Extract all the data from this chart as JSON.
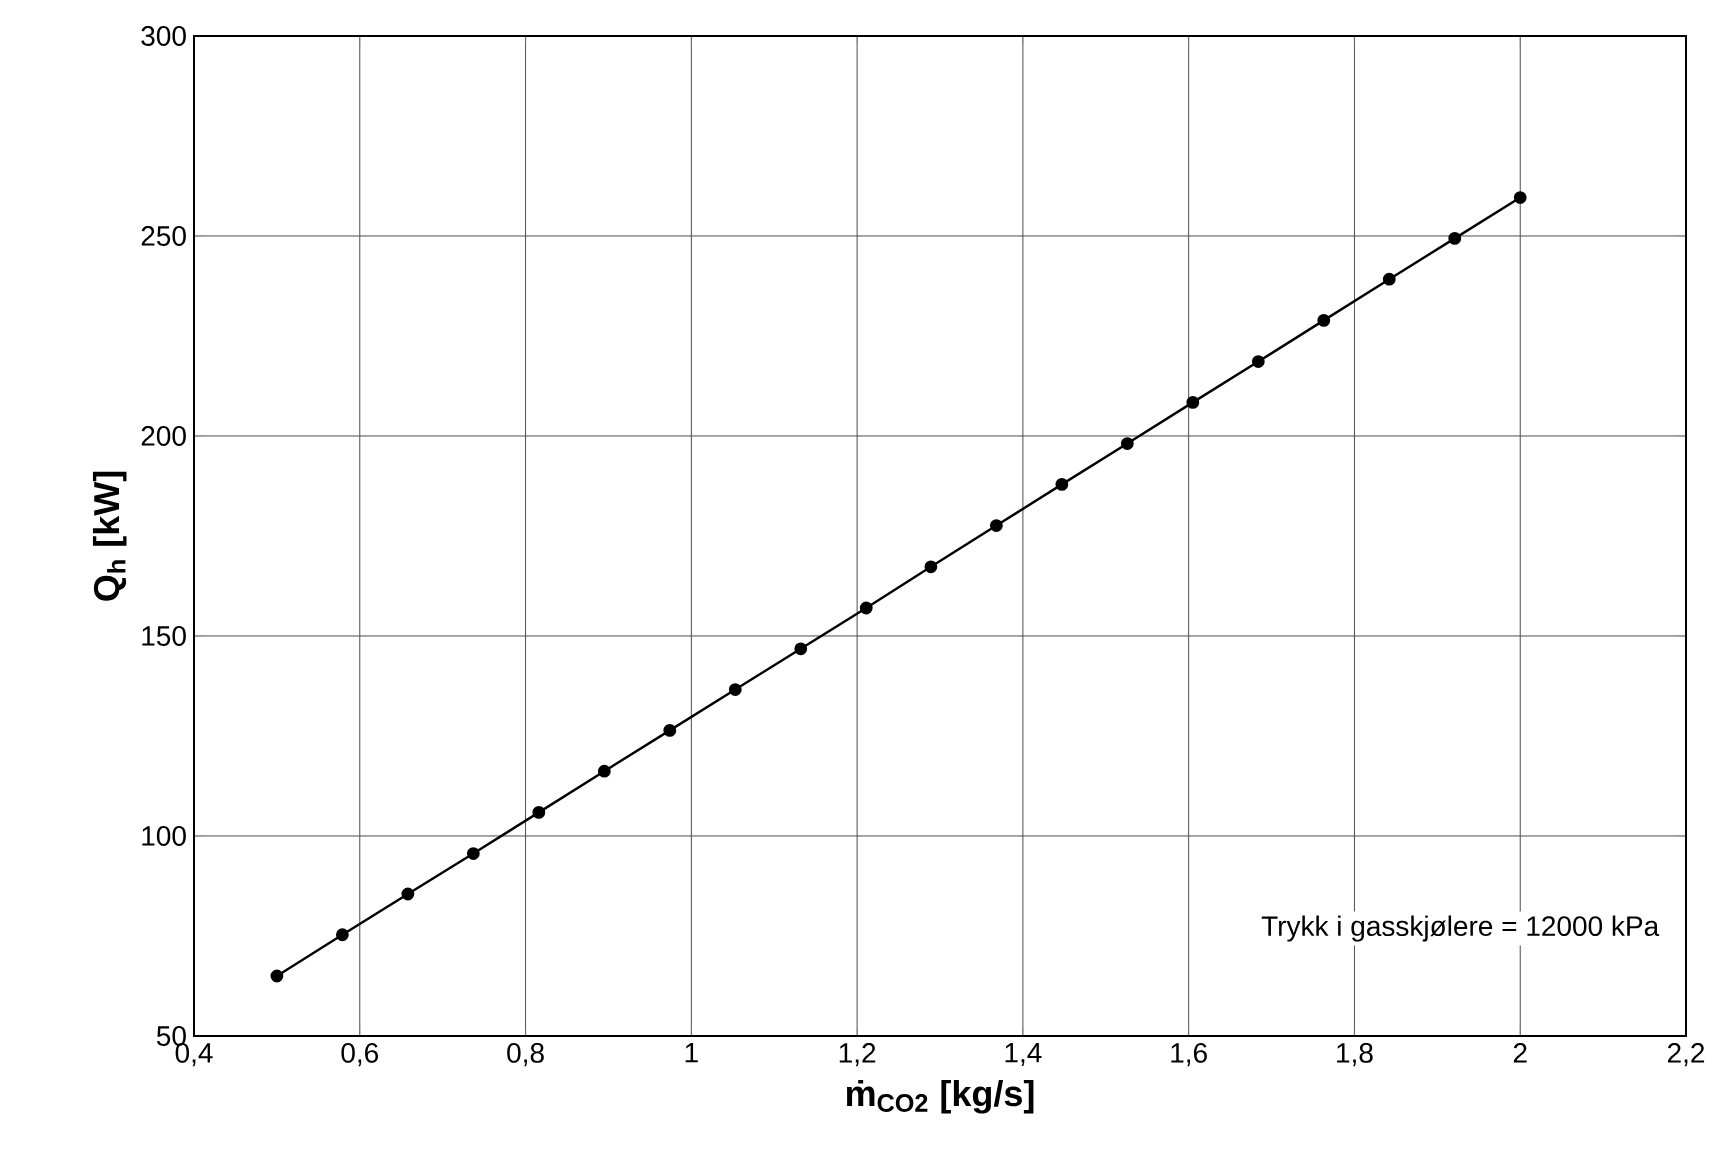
{
  "chart_data": {
    "type": "line",
    "xlabel": "ṁ$_{CO2}$ [kg/s]",
    "ylabel": "Q$_{h}$ [kW]",
    "x": [
      0.5,
      0.579,
      0.658,
      0.737,
      0.816,
      0.895,
      0.974,
      1.053,
      1.132,
      1.211,
      1.289,
      1.368,
      1.447,
      1.526,
      1.605,
      1.684,
      1.763,
      1.842,
      1.921,
      2.0
    ],
    "series": [
      {
        "color": "#000000",
        "values": [
          65,
          75.3,
          85.5,
          95.6,
          105.9,
          116.2,
          126.4,
          136.6,
          146.8,
          157.0,
          167.3,
          177.6,
          187.9,
          198.1,
          208.4,
          218.6,
          228.9,
          239.2,
          249.4,
          259.6
        ]
      }
    ],
    "xlim": [
      0.4,
      2.2
    ],
    "ylim": [
      50,
      300
    ],
    "xticks": [
      {
        "value": 0.4,
        "label": "0,4"
      },
      {
        "value": 0.6,
        "label": "0,6"
      },
      {
        "value": 0.8,
        "label": "0,8"
      },
      {
        "value": 1,
        "label": "1"
      },
      {
        "value": 1.2,
        "label": "1,2"
      },
      {
        "value": 1.4,
        "label": "1,4"
      },
      {
        "value": 1.6,
        "label": "1,6"
      },
      {
        "value": 1.8,
        "label": "1,8"
      },
      {
        "value": 2,
        "label": "2"
      },
      {
        "value": 2.2,
        "label": "2,2"
      }
    ],
    "yticks": [
      50,
      100,
      150,
      200,
      250,
      300
    ],
    "annotations": [
      "Trykk i gasskjølere = 12000 kPa"
    ],
    "grid": true,
    "marker": "circle",
    "line_style": "solid"
  }
}
